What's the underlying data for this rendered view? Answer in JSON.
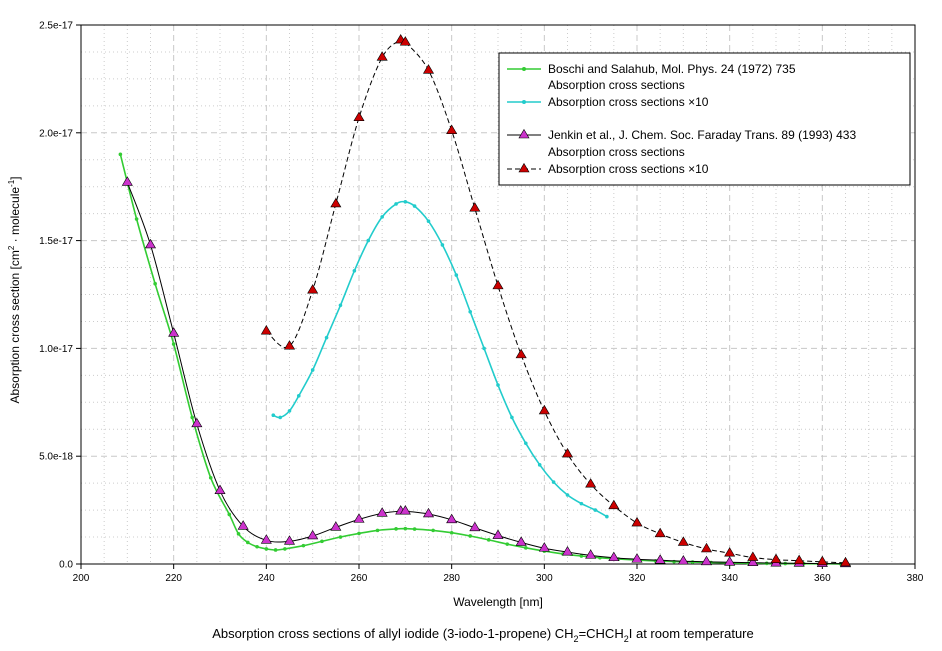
{
  "chart_data": {
    "type": "line",
    "caption": {
      "prefix": "Absorption cross sections of allyl iodide (3-iodo-1-propene) CH",
      "sub1": "2",
      "mid": "=CHCH",
      "sub2": "2",
      "suffix": "I at room temperature"
    },
    "xlabel": "Wavelength [nm]",
    "ylabel": {
      "prefix": "Absorption cross section [cm",
      "sup1": "2",
      "mid": " · molecule",
      "sup2": "-1",
      "suffix": "]"
    },
    "xlim": [
      200,
      380
    ],
    "ylim": [
      0,
      2.5e-17
    ],
    "x_ticks": [
      200,
      220,
      240,
      260,
      280,
      300,
      320,
      340,
      360,
      380
    ],
    "x_tick_labels": [
      "200",
      "220",
      "240",
      "260",
      "280",
      "300",
      "320",
      "340",
      "360",
      "380"
    ],
    "y_ticks": [
      0,
      5e-18,
      1e-17,
      1.5e-17,
      2e-17,
      2.5e-17
    ],
    "y_tick_labels": [
      "0.0",
      "5.0e-18",
      "1.0e-17",
      "1.5e-17",
      "2.0e-17",
      "2.5e-17"
    ],
    "legend": {
      "group1_title": "Boschi and Salahub, Mol. Phys. 24 (1972) 735",
      "group1_entries": [
        "Absorption cross sections",
        "Absorption cross sections ×10"
      ],
      "group2_title": "Jenkin et al.,  J. Chem. Soc. Faraday Trans. 89 (1993) 433",
      "group2_entries": [
        "Absorption cross sections",
        "Absorption cross sections ×10"
      ],
      "placement": "top-right"
    },
    "series": [
      {
        "name": "Boschi and Salahub – Absorption cross sections",
        "color": "#33cc33",
        "marker": "dot",
        "line": "solid",
        "x": [
          208.5,
          212,
          216,
          220,
          224,
          228,
          232,
          234,
          236,
          238,
          240,
          242,
          244,
          248,
          252,
          256,
          260,
          264,
          268,
          270,
          272,
          276,
          280,
          284,
          288,
          292,
          296,
          300,
          304,
          308,
          312,
          316,
          320,
          324,
          328,
          332,
          336,
          340,
          344,
          348,
          352,
          356,
          360,
          364
        ],
        "y": [
          1.9e-17,
          1.6e-17,
          1.3e-17,
          1.02e-17,
          6.8e-18,
          4e-18,
          2.3e-18,
          1.4e-18,
          1e-18,
          8e-19,
          7e-19,
          6.5e-19,
          7e-19,
          8.5e-19,
          1.05e-18,
          1.25e-18,
          1.42e-18,
          1.56e-18,
          1.63e-18,
          1.64e-18,
          1.62e-18,
          1.56e-18,
          1.45e-18,
          1.3e-18,
          1.12e-18,
          9.2e-19,
          7.5e-19,
          6e-19,
          4.7e-19,
          3.7e-19,
          2.9e-19,
          2.3e-19,
          1.8e-19,
          1.4e-19,
          1.1e-19,
          9e-20,
          7e-20,
          5e-20,
          4e-20,
          3e-20,
          2e-20,
          1.5e-20,
          1e-20,
          5e-21
        ]
      },
      {
        "name": "Boschi and Salahub – Absorption cross sections ×10",
        "color": "#22cccc",
        "marker": "dot",
        "line": "solid",
        "x": [
          241.5,
          243,
          245,
          247,
          250,
          253,
          256,
          259,
          262,
          265,
          268,
          270,
          272,
          275,
          278,
          281,
          284,
          287,
          290,
          293,
          296,
          299,
          302,
          305,
          308,
          311,
          313.5
        ],
        "y": [
          6.9e-18,
          6.8e-18,
          7.1e-18,
          7.8e-18,
          9e-18,
          1.05e-17,
          1.2e-17,
          1.36e-17,
          1.5e-17,
          1.61e-17,
          1.67e-17,
          1.68e-17,
          1.66e-17,
          1.59e-17,
          1.48e-17,
          1.34e-17,
          1.17e-17,
          1e-17,
          8.3e-18,
          6.8e-18,
          5.6e-18,
          4.6e-18,
          3.8e-18,
          3.2e-18,
          2.8e-18,
          2.5e-18,
          2.2e-18
        ]
      },
      {
        "name": "Jenkin et al. – Absorption cross sections",
        "color": "#cc33cc",
        "marker": "triangle",
        "line": "solid",
        "x": [
          210,
          215,
          220,
          225,
          230,
          235,
          240,
          245,
          250,
          255,
          260,
          265,
          269,
          270,
          275,
          280,
          285,
          290,
          295,
          300,
          305,
          310,
          315,
          320,
          325,
          330,
          335,
          340,
          345,
          350,
          355,
          360,
          365
        ],
        "y": [
          1.77e-17,
          1.48e-17,
          1.07e-17,
          6.5e-18,
          3.4e-18,
          1.75e-18,
          1.1e-18,
          1.05e-18,
          1.3e-18,
          1.7e-18,
          2.07e-18,
          2.35e-18,
          2.45e-18,
          2.45e-18,
          2.32e-18,
          2.05e-18,
          1.68e-18,
          1.32e-18,
          1e-18,
          7.3e-19,
          5.5e-19,
          4e-19,
          2.9e-19,
          2.2e-19,
          1.7e-19,
          1.3e-19,
          1e-19,
          8e-20,
          6e-20,
          4e-20,
          3e-20,
          2e-20,
          1e-20
        ]
      },
      {
        "name": "Jenkin et al. – Absorption cross sections ×10",
        "color": "#cc0000",
        "marker": "triangle",
        "line": "dashed",
        "x": [
          240,
          245,
          250,
          255,
          260,
          265,
          269,
          270,
          275,
          280,
          285,
          290,
          295,
          300,
          305,
          310,
          315,
          320,
          325,
          330,
          335,
          340,
          345,
          350,
          355,
          360,
          365
        ],
        "y": [
          1.08e-17,
          1.01e-17,
          1.27e-17,
          1.67e-17,
          2.07e-17,
          2.35e-17,
          2.43e-17,
          2.42e-17,
          2.29e-17,
          2.01e-17,
          1.65e-17,
          1.29e-17,
          9.7e-18,
          7.1e-18,
          5.1e-18,
          3.7e-18,
          2.7e-18,
          1.9e-18,
          1.4e-18,
          1e-18,
          7e-19,
          5e-19,
          3e-19,
          2e-19,
          1.5e-19,
          1e-19,
          5e-20
        ]
      }
    ]
  }
}
